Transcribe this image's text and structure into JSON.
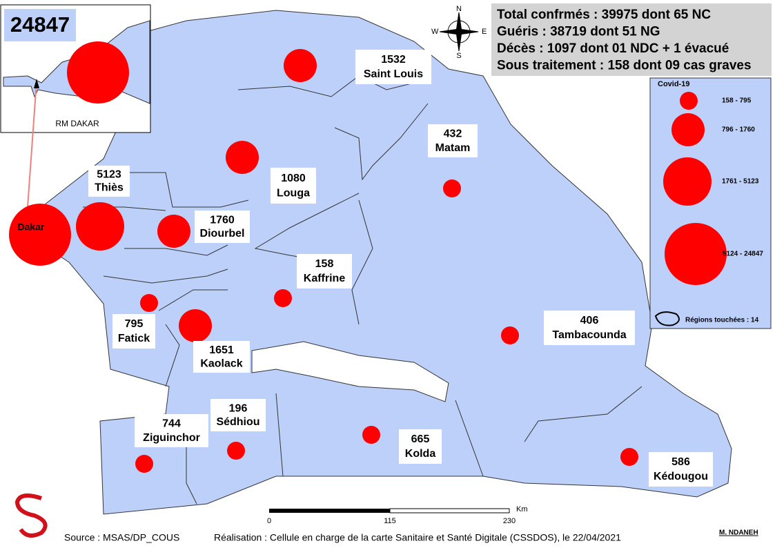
{
  "summary": [
    "Total confrmés : 39975 dont 65 NC",
    "Guéris : 38719 dont 51 NG",
    "Décès : 1097 dont 01 NDC + 1 évacué",
    "Sous traitement : 158 dont 09 cas graves"
  ],
  "compass": {
    "n": "N",
    "s": "S",
    "e": "E",
    "w": "W"
  },
  "inset": {
    "caption": "RM DAKAR"
  },
  "dakar": {
    "name": "Dakar",
    "value": 24847
  },
  "regions": [
    {
      "name": "Saint Louis",
      "value": 1532
    },
    {
      "name": "Matam",
      "value": 432
    },
    {
      "name": "Louga",
      "value": 1080
    },
    {
      "name": "Thiès",
      "value": 5123
    },
    {
      "name": "Diourbel",
      "value": 1760
    },
    {
      "name": "Kaffrine",
      "value": 158
    },
    {
      "name": "Fatick",
      "value": 795
    },
    {
      "name": "Kaolack",
      "value": 1651
    },
    {
      "name": "Tambacounda",
      "value": 406
    },
    {
      "name": "Sédhiou",
      "value": 196
    },
    {
      "name": "Ziguinchor",
      "value": 744
    },
    {
      "name": "Kolda",
      "value": 665
    },
    {
      "name": "Kédougou",
      "value": 586
    }
  ],
  "legend": {
    "title": "Covid-19",
    "classes": [
      "158 - 795",
      "796 - 1760",
      "1761 - 5123",
      "5124 - 24847"
    ],
    "note": "Régions touchées : 14"
  },
  "scale": {
    "ticks": [
      0,
      115,
      230
    ],
    "unit": "Km"
  },
  "footer": {
    "source": "Source : MSAS/DP_COUS",
    "credit": "Réalisation : Cellule en charge de la carte Sanitaire et Santé Digitale (CSSDOS), le 22/04/2021",
    "author": "M. NDANEH"
  }
}
